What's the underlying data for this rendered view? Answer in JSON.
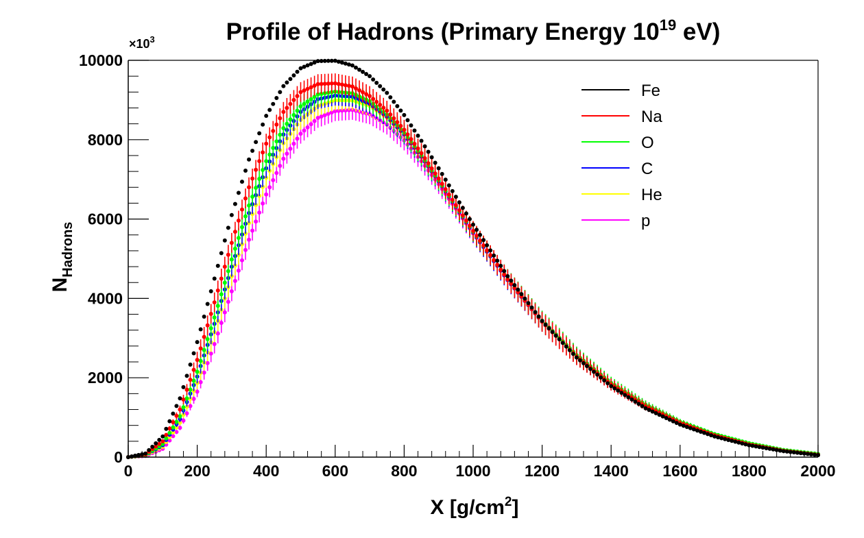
{
  "chart_data": {
    "type": "scatter",
    "title": {
      "main": "Profile of Hadrons (Primary Energy 10",
      "sup": "19",
      "end": " eV)"
    },
    "xlabel": {
      "main": "X [g/cm",
      "sup": "2",
      "end": "]"
    },
    "ylabel": {
      "main": "N",
      "sub": "Hadrons"
    },
    "y_multiplier": {
      "main": "×10",
      "sup": "3"
    },
    "xlim": [
      0,
      2000
    ],
    "ylim": [
      0,
      10000
    ],
    "x_ticks": [
      "0",
      "200",
      "400",
      "600",
      "800",
      "1000",
      "1200",
      "1400",
      "1600",
      "1800",
      "2000"
    ],
    "y_ticks": [
      "0",
      "2000",
      "4000",
      "6000",
      "8000",
      "10000"
    ],
    "legend_position": "top-right",
    "series": [
      {
        "name": "p",
        "color": "#ff00ff",
        "peak_x": 650,
        "peak_y": 8750,
        "err": 250,
        "points": [
          [
            0,
            0
          ],
          [
            50,
            30
          ],
          [
            100,
            210
          ],
          [
            150,
            740
          ],
          [
            200,
            1650
          ],
          [
            250,
            2850
          ],
          [
            300,
            4180
          ],
          [
            350,
            5480
          ],
          [
            400,
            6620
          ],
          [
            450,
            7520
          ],
          [
            500,
            8150
          ],
          [
            550,
            8550
          ],
          [
            600,
            8720
          ],
          [
            650,
            8750
          ],
          [
            700,
            8640
          ],
          [
            750,
            8380
          ],
          [
            800,
            7980
          ],
          [
            850,
            7460
          ],
          [
            900,
            6880
          ],
          [
            950,
            6260
          ],
          [
            1000,
            5640
          ],
          [
            1100,
            4480
          ],
          [
            1200,
            3440
          ],
          [
            1300,
            2570
          ],
          [
            1400,
            1860
          ],
          [
            1500,
            1310
          ],
          [
            1600,
            880
          ],
          [
            1700,
            560
          ],
          [
            1800,
            330
          ],
          [
            1900,
            170
          ],
          [
            2000,
            70
          ]
        ]
      },
      {
        "name": "He",
        "color": "#ffff00",
        "peak_x": 640,
        "peak_y": 9000,
        "err": 250,
        "points": [
          [
            0,
            0
          ],
          [
            50,
            40
          ],
          [
            100,
            260
          ],
          [
            150,
            870
          ],
          [
            200,
            1870
          ],
          [
            250,
            3150
          ],
          [
            300,
            4560
          ],
          [
            350,
            5900
          ],
          [
            400,
            7040
          ],
          [
            450,
            7910
          ],
          [
            500,
            8500
          ],
          [
            550,
            8850
          ],
          [
            600,
            8990
          ],
          [
            650,
            8990
          ],
          [
            700,
            8850
          ],
          [
            750,
            8560
          ],
          [
            800,
            8130
          ],
          [
            850,
            7580
          ],
          [
            900,
            6970
          ],
          [
            950,
            6320
          ],
          [
            1000,
            5680
          ],
          [
            1100,
            4480
          ],
          [
            1200,
            3420
          ],
          [
            1300,
            2540
          ],
          [
            1400,
            1840
          ],
          [
            1500,
            1290
          ],
          [
            1600,
            870
          ],
          [
            1700,
            560
          ],
          [
            1800,
            330
          ],
          [
            1900,
            170
          ],
          [
            2000,
            70
          ]
        ]
      },
      {
        "name": "C",
        "color": "#0000ff",
        "peak_x": 630,
        "peak_y": 9100,
        "err": 250,
        "points": [
          [
            0,
            0
          ],
          [
            50,
            50
          ],
          [
            100,
            300
          ],
          [
            150,
            960
          ],
          [
            200,
            2030
          ],
          [
            250,
            3360
          ],
          [
            300,
            4800
          ],
          [
            350,
            6150
          ],
          [
            400,
            7280
          ],
          [
            450,
            8130
          ],
          [
            500,
            8700
          ],
          [
            550,
            9020
          ],
          [
            600,
            9110
          ],
          [
            650,
            9080
          ],
          [
            700,
            8900
          ],
          [
            750,
            8580
          ],
          [
            800,
            8130
          ],
          [
            850,
            7570
          ],
          [
            900,
            6950
          ],
          [
            950,
            6300
          ],
          [
            1000,
            5660
          ],
          [
            1100,
            4460
          ],
          [
            1200,
            3410
          ],
          [
            1300,
            2540
          ],
          [
            1400,
            1840
          ],
          [
            1500,
            1290
          ],
          [
            1600,
            870
          ],
          [
            1700,
            560
          ],
          [
            1800,
            330
          ],
          [
            1900,
            170
          ],
          [
            2000,
            70
          ]
        ]
      },
      {
        "name": "O",
        "color": "#00ff00",
        "peak_x": 630,
        "peak_y": 9200,
        "err": 250,
        "points": [
          [
            0,
            0
          ],
          [
            50,
            55
          ],
          [
            100,
            330
          ],
          [
            150,
            1030
          ],
          [
            200,
            2150
          ],
          [
            250,
            3520
          ],
          [
            300,
            4980
          ],
          [
            350,
            6340
          ],
          [
            400,
            7460
          ],
          [
            450,
            8290
          ],
          [
            500,
            8840
          ],
          [
            550,
            9140
          ],
          [
            600,
            9210
          ],
          [
            650,
            9170
          ],
          [
            700,
            8970
          ],
          [
            750,
            8630
          ],
          [
            800,
            8170
          ],
          [
            850,
            7600
          ],
          [
            900,
            6970
          ],
          [
            950,
            6320
          ],
          [
            1000,
            5680
          ],
          [
            1100,
            4490
          ],
          [
            1200,
            3440
          ],
          [
            1300,
            2570
          ],
          [
            1400,
            1870
          ],
          [
            1500,
            1320
          ],
          [
            1600,
            890
          ],
          [
            1700,
            580
          ],
          [
            1800,
            350
          ],
          [
            1900,
            180
          ],
          [
            2000,
            80
          ]
        ]
      },
      {
        "name": "Na",
        "color": "#ff0000",
        "peak_x": 620,
        "peak_y": 9400,
        "err": 250,
        "points": [
          [
            0,
            0
          ],
          [
            50,
            70
          ],
          [
            100,
            400
          ],
          [
            150,
            1200
          ],
          [
            200,
            2450
          ],
          [
            250,
            3900
          ],
          [
            300,
            5400
          ],
          [
            350,
            6800
          ],
          [
            400,
            7900
          ],
          [
            450,
            8700
          ],
          [
            500,
            9200
          ],
          [
            550,
            9400
          ],
          [
            600,
            9420
          ],
          [
            650,
            9340
          ],
          [
            700,
            9100
          ],
          [
            750,
            8730
          ],
          [
            800,
            8250
          ],
          [
            850,
            7660
          ],
          [
            900,
            7020
          ],
          [
            950,
            6350
          ],
          [
            1000,
            5700
          ],
          [
            1100,
            4480
          ],
          [
            1200,
            3410
          ],
          [
            1300,
            2530
          ],
          [
            1400,
            1830
          ],
          [
            1500,
            1280
          ],
          [
            1600,
            860
          ],
          [
            1700,
            550
          ],
          [
            1800,
            320
          ],
          [
            1900,
            160
          ],
          [
            2000,
            60
          ]
        ]
      },
      {
        "name": "Fe",
        "color": "#000000",
        "peak_x": 600,
        "peak_y": 10000,
        "err": 0,
        "points": [
          [
            0,
            0
          ],
          [
            50,
            90
          ],
          [
            100,
            520
          ],
          [
            150,
            1480
          ],
          [
            200,
            2900
          ],
          [
            250,
            4500
          ],
          [
            300,
            6100
          ],
          [
            350,
            7500
          ],
          [
            400,
            8600
          ],
          [
            450,
            9350
          ],
          [
            500,
            9800
          ],
          [
            550,
            9980
          ],
          [
            600,
            9990
          ],
          [
            650,
            9870
          ],
          [
            700,
            9600
          ],
          [
            750,
            9180
          ],
          [
            800,
            8620
          ],
          [
            850,
            7970
          ],
          [
            900,
            7280
          ],
          [
            950,
            6560
          ],
          [
            1000,
            5860
          ],
          [
            1100,
            4560
          ],
          [
            1200,
            3430
          ],
          [
            1300,
            2510
          ],
          [
            1400,
            1790
          ],
          [
            1500,
            1230
          ],
          [
            1600,
            820
          ],
          [
            1700,
            520
          ],
          [
            1800,
            300
          ],
          [
            1900,
            150
          ],
          [
            2000,
            50
          ]
        ]
      }
    ],
    "legend_order": [
      "Fe",
      "Na",
      "O",
      "C",
      "He",
      "p"
    ]
  }
}
